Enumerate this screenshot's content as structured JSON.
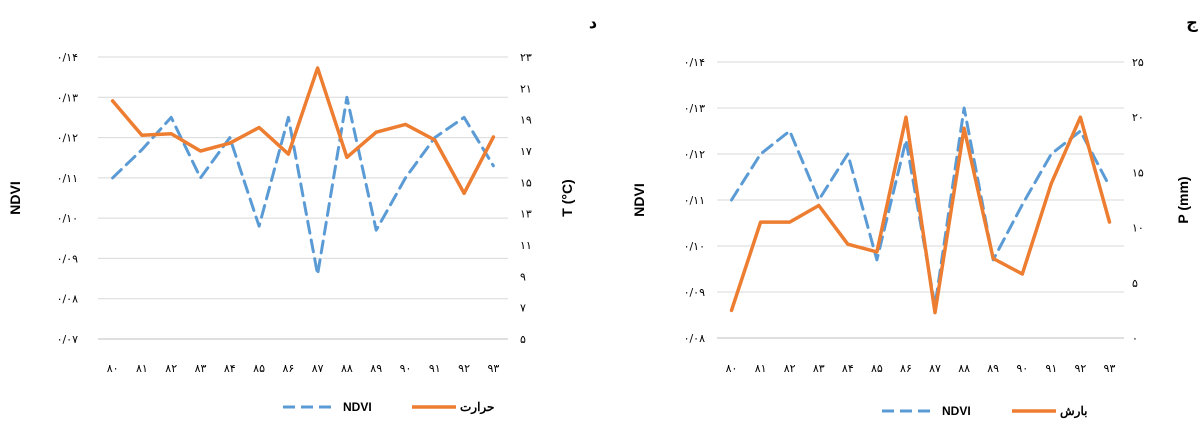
{
  "chart_data": [
    {
      "panel_label": "د",
      "type": "line",
      "categories": [
        "۸۰",
        "۸۱",
        "۸۲",
        "۸۳",
        "۸۴",
        "۸۵",
        "۸۶",
        "۸۷",
        "۸۸",
        "۸۹",
        "۹۰",
        "۹۱",
        "۹۲",
        "۹۳"
      ],
      "ylabel_left": "NDVI",
      "ylabel_right": "T (°C)",
      "ylim_left": [
        0.07,
        0.14
      ],
      "ylim_right": [
        5,
        23
      ],
      "yticks_left": [
        "۰/۰۷",
        "۰/۰۸",
        "۰/۰۹",
        "۰/۱۰",
        "۰/۱۱",
        "۰/۱۲",
        "۰/۱۳",
        "۰/۱۴"
      ],
      "yticks_right": [
        "۵",
        "۷",
        "۹",
        "۱۱",
        "۱۳",
        "۱۵",
        "۱۷",
        "۱۹",
        "۲۱",
        "۲۳"
      ],
      "grid": true,
      "legend_position": "bottom",
      "series": [
        {
          "name": "NDVI",
          "axis": "left",
          "style": "dashed",
          "color": "#5b9bd5",
          "values": [
            0.11,
            0.117,
            0.125,
            0.11,
            0.12,
            0.098,
            0.125,
            0.086,
            0.13,
            0.097,
            0.11,
            0.12,
            0.125,
            0.113
          ]
        },
        {
          "name": "حرارت",
          "axis": "right",
          "style": "solid",
          "color": "#ed7d31",
          "values": [
            20.2,
            18.0,
            18.1,
            17.0,
            17.5,
            18.5,
            16.8,
            22.3,
            16.6,
            18.2,
            18.7,
            17.7,
            14.3,
            17.9
          ]
        }
      ]
    },
    {
      "panel_label": "ج",
      "type": "line",
      "categories": [
        "۸۰",
        "۸۱",
        "۸۲",
        "۸۳",
        "۸۴",
        "۸۵",
        "۸۶",
        "۸۷",
        "۸۸",
        "۸۹",
        "۹۰",
        "۹۱",
        "۹۲",
        "۹۳"
      ],
      "ylabel_left": "NDVI",
      "ylabel_right": "P (mm)",
      "ylim_left": [
        0.08,
        0.14
      ],
      "ylim_right": [
        0,
        25
      ],
      "yticks_left": [
        "۰/۰۸",
        "۰/۰۹",
        "۰/۱۰",
        "۰/۱۱",
        "۰/۱۲",
        "۰/۱۳",
        "۰/۱۴"
      ],
      "yticks_right": [
        "۰",
        "۵",
        "۱۰",
        "۱۵",
        "۲۰",
        "۲۵"
      ],
      "grid": true,
      "legend_position": "bottom",
      "series": [
        {
          "name": "NDVI",
          "axis": "left",
          "style": "dashed",
          "color": "#5b9bd5",
          "values": [
            0.11,
            0.12,
            0.125,
            0.11,
            0.12,
            0.097,
            0.123,
            0.087,
            0.13,
            0.097,
            0.109,
            0.12,
            0.125,
            0.113
          ]
        },
        {
          "name": "بارش",
          "axis": "right",
          "style": "solid",
          "color": "#ed7d31",
          "values": [
            2.5,
            10.5,
            10.5,
            12.0,
            8.5,
            7.8,
            20.0,
            2.3,
            19.0,
            7.2,
            5.8,
            14.0,
            20.0,
            10.5
          ]
        }
      ]
    }
  ]
}
